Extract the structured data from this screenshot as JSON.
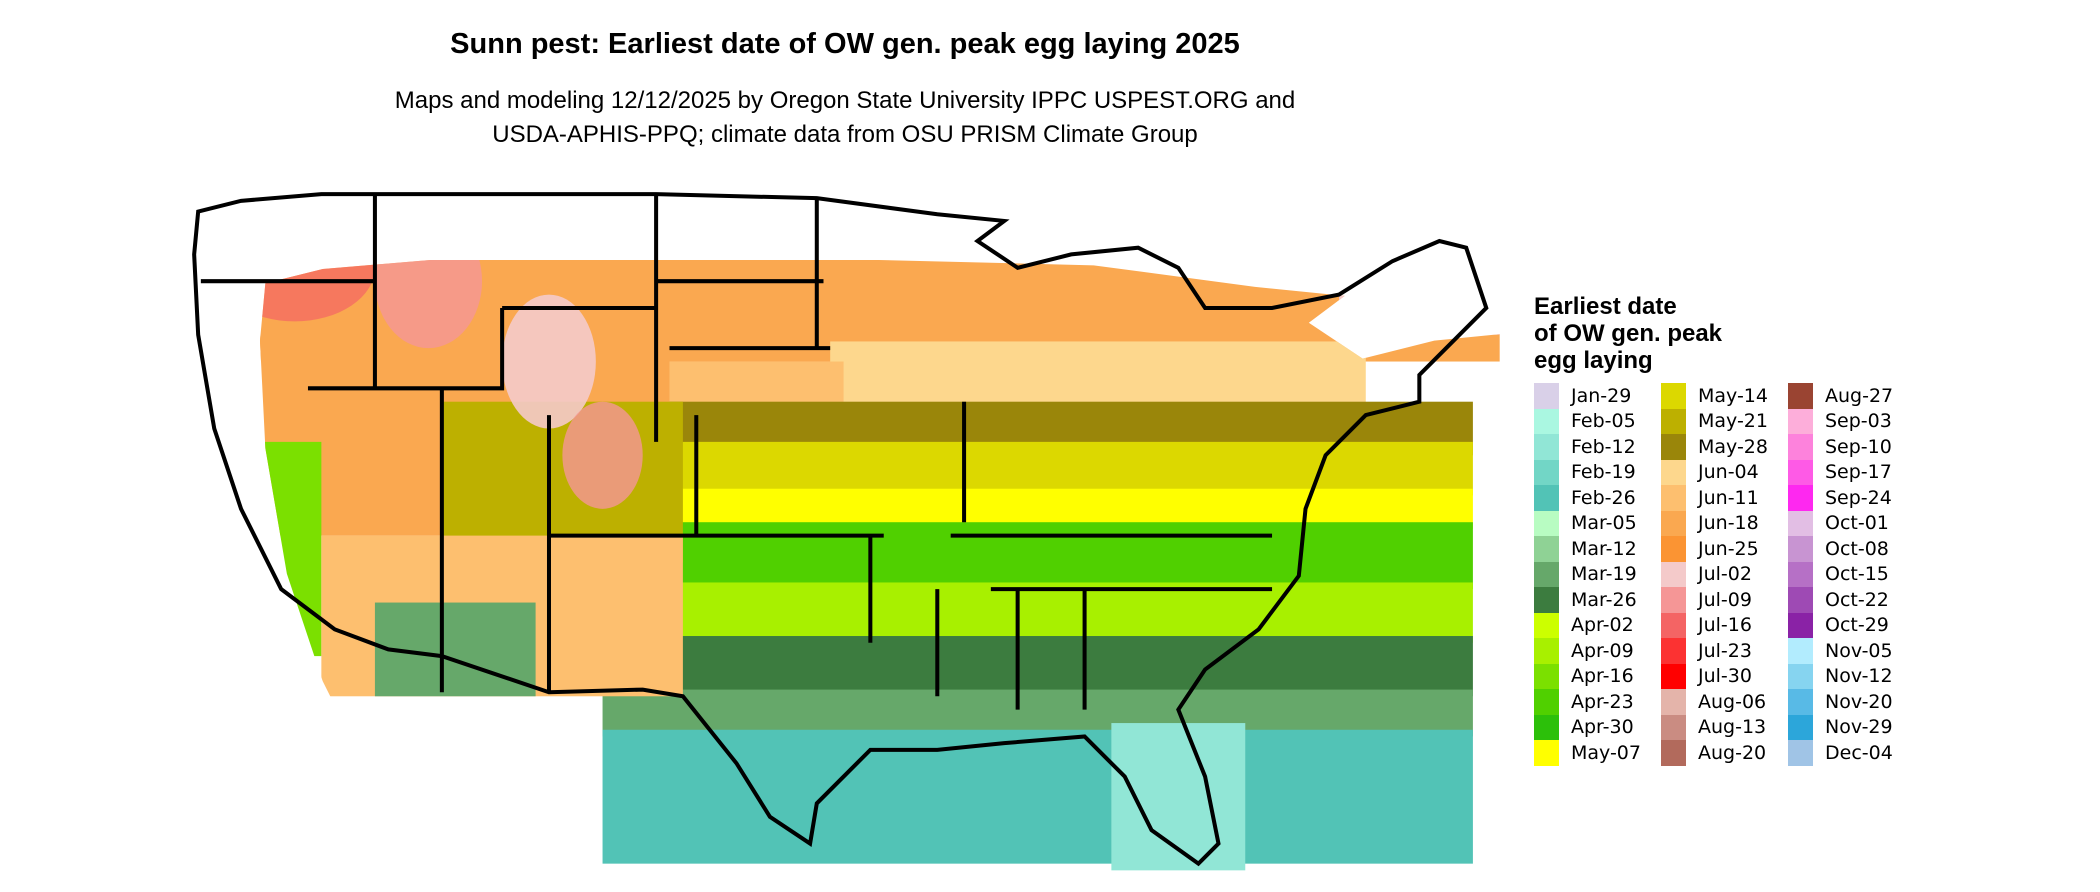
{
  "title": "Sunn pest: Earliest date of OW gen. peak egg laying 2025",
  "subtitle_lines": [
    "Maps and modeling 12/12/2025 by Oregon State University IPPC USPEST.ORG and",
    "USDA-APHIS-PPQ; climate data from OSU PRISM Climate Group"
  ],
  "legend": {
    "title": "Earliest date\nof OW gen. peak\negg laying",
    "items": [
      {
        "label": "Jan-29",
        "color": "#D9D0E8"
      },
      {
        "label": "Feb-05",
        "color": "#AAF7E1"
      },
      {
        "label": "Feb-12",
        "color": "#91E6D6"
      },
      {
        "label": "Feb-19",
        "color": "#72D6C6"
      },
      {
        "label": "Feb-26",
        "color": "#52C3B6"
      },
      {
        "label": "Mar-05",
        "color": "#B8FCC2"
      },
      {
        "label": "Mar-12",
        "color": "#8FD295"
      },
      {
        "label": "Mar-19",
        "color": "#66A86A"
      },
      {
        "label": "Mar-26",
        "color": "#3C7C3F"
      },
      {
        "label": "Apr-02",
        "color": "#CCFF00"
      },
      {
        "label": "Apr-09",
        "color": "#A8F000"
      },
      {
        "label": "Apr-16",
        "color": "#7BE000"
      },
      {
        "label": "Apr-23",
        "color": "#50D000"
      },
      {
        "label": "Apr-30",
        "color": "#2CC00A"
      },
      {
        "label": "May-07",
        "color": "#FFFF00"
      },
      {
        "label": "May-14",
        "color": "#DCD800"
      },
      {
        "label": "May-21",
        "color": "#BDB000"
      },
      {
        "label": "May-28",
        "color": "#9A860A"
      },
      {
        "label": "Jun-04",
        "color": "#FDD78D"
      },
      {
        "label": "Jun-11",
        "color": "#FDBF6F"
      },
      {
        "label": "Jun-18",
        "color": "#FAA850"
      },
      {
        "label": "Jun-25",
        "color": "#FB9433"
      },
      {
        "label": "Jul-02",
        "color": "#F4CACA"
      },
      {
        "label": "Jul-09",
        "color": "#F59696"
      },
      {
        "label": "Jul-16",
        "color": "#F46464"
      },
      {
        "label": "Jul-23",
        "color": "#FC3232"
      },
      {
        "label": "Jul-30",
        "color": "#FF0000"
      },
      {
        "label": "Aug-06",
        "color": "#E4B4AA"
      },
      {
        "label": "Aug-13",
        "color": "#CA8C82"
      },
      {
        "label": "Aug-20",
        "color": "#B26A5C"
      },
      {
        "label": "Aug-27",
        "color": "#9A4432"
      },
      {
        "label": "Sep-03",
        "color": "#FDAEDA"
      },
      {
        "label": "Sep-10",
        "color": "#FD82DC"
      },
      {
        "label": "Sep-17",
        "color": "#FE5AE6"
      },
      {
        "label": "Sep-24",
        "color": "#FE28F0"
      },
      {
        "label": "Oct-01",
        "color": "#E2BEE4"
      },
      {
        "label": "Oct-08",
        "color": "#C894D2"
      },
      {
        "label": "Oct-15",
        "color": "#B670C6"
      },
      {
        "label": "Oct-22",
        "color": "#9E4AB4"
      },
      {
        "label": "Oct-29",
        "color": "#8A22A6"
      },
      {
        "label": "Nov-05",
        "color": "#B2ECFE"
      },
      {
        "label": "Nov-12",
        "color": "#86D4F0"
      },
      {
        "label": "Nov-20",
        "color": "#58BAE6"
      },
      {
        "label": "Nov-29",
        "color": "#2CA6DA"
      },
      {
        "label": "Dec-04",
        "color": "#A0C4E6"
      }
    ]
  }
}
